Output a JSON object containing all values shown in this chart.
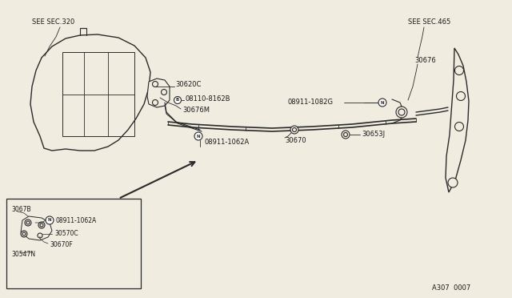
{
  "bg_color": "#f0ece0",
  "line_color": "#2a2a2a",
  "text_color": "#1a1a1a",
  "fig_width": 6.4,
  "fig_height": 3.72,
  "part_code": "A307 0007",
  "labels": {
    "see_sec_320": "SEE SEC.320",
    "see_sec_465": "SEE SEC.465",
    "p30620C": "30620C",
    "p08110_8162B": "08110-8162B",
    "p30676M": "30676M",
    "p30670": "30670",
    "p30653J": "30653J",
    "p08911_1062A_main": "08911-1062A",
    "p08911_1082G": "08911-1082G",
    "p30676": "30676",
    "p3067B": "3067B",
    "p08911_1062A_inset": "08911-1062A",
    "p30570C": "30570C",
    "p30670F": "30670F",
    "p30547N": "30547N"
  }
}
